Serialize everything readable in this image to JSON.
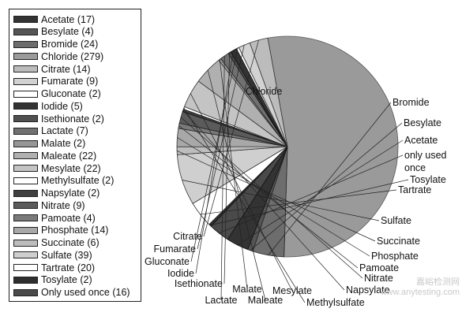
{
  "chart_data": {
    "type": "pie",
    "title": "",
    "slices": [
      {
        "label": "Chloride",
        "legend": "Chloride (279)",
        "value": 279,
        "color": "#9a9a9a",
        "edge": "#555555"
      },
      {
        "label": "Bromide",
        "legend": "Bromide (24)",
        "value": 24,
        "color": "#6d6d6d",
        "edge": "#222222"
      },
      {
        "label": "Besylate",
        "legend": "Besylate (4)",
        "value": 4,
        "color": "#555555",
        "edge": "#222222"
      },
      {
        "label": "Acetate",
        "legend": "Acetate (17)",
        "value": 17,
        "color": "#333333",
        "edge": "#111111"
      },
      {
        "label": "only used once",
        "legend": "Only used once (16)",
        "value": 16,
        "color": "#4a4a4a",
        "edge": "#111111"
      },
      {
        "label": "Tosylate",
        "legend": "Tosylate (2)",
        "value": 2,
        "color": "#2e2e2e",
        "edge": "#111111"
      },
      {
        "label": "Tartrate",
        "legend": "Tartrate (20)",
        "value": 20,
        "color": "#ffffff",
        "edge": "#222222"
      },
      {
        "label": "Sulfate",
        "legend": "Sulfate (39)",
        "value": 39,
        "color": "#cfcfcf",
        "edge": "#333333"
      },
      {
        "label": "Succinate",
        "legend": "Succinate (6)",
        "value": 6,
        "color": "#bdbdbd",
        "edge": "#333333"
      },
      {
        "label": "Phosphate",
        "legend": "Phosphate (14)",
        "value": 14,
        "color": "#a8a8a8",
        "edge": "#333333"
      },
      {
        "label": "Pamoate",
        "legend": "Pamoate (4)",
        "value": 4,
        "color": "#7a7a7a",
        "edge": "#222222"
      },
      {
        "label": "Nitrate",
        "legend": "Nitrate (9)",
        "value": 9,
        "color": "#5b5b5b",
        "edge": "#222222"
      },
      {
        "label": "Napsylate",
        "legend": "Napsylate (2)",
        "value": 2,
        "color": "#404040",
        "edge": "#111111"
      },
      {
        "label": "Methylsulfate",
        "legend": "Methylsulfate (2)",
        "value": 2,
        "color": "#ffffff",
        "edge": "#222222"
      },
      {
        "label": "Mesylate",
        "legend": "Mesylate (22)",
        "value": 22,
        "color": "#c4c4c4",
        "edge": "#333333"
      },
      {
        "label": "Maleate",
        "legend": "Maleate (22)",
        "value": 22,
        "color": "#b0b0b0",
        "edge": "#333333"
      },
      {
        "label": "Malate",
        "legend": "Malate (2)",
        "value": 2,
        "color": "#969696",
        "edge": "#333333"
      },
      {
        "label": "Lactate",
        "legend": "Lactate (7)",
        "value": 7,
        "color": "#707070",
        "edge": "#222222"
      },
      {
        "label": "Isethionate",
        "legend": "Isethionate (2)",
        "value": 2,
        "color": "#505050",
        "edge": "#111111"
      },
      {
        "label": "Iodide",
        "legend": "Iodide (5)",
        "value": 5,
        "color": "#333333",
        "edge": "#111111"
      },
      {
        "label": "Gluconate",
        "legend": "Gluconate (2)",
        "value": 2,
        "color": "#ffffff",
        "edge": "#222222"
      },
      {
        "label": "Fumarate",
        "legend": "Fumarate (9)",
        "value": 9,
        "color": "#d2d2d2",
        "edge": "#333333"
      },
      {
        "label": "Citrate",
        "legend": "Citrate (14)",
        "value": 14,
        "color": "#bcbcbc",
        "edge": "#333333"
      }
    ],
    "legend_order": [
      "Acetate",
      "Besylate",
      "Bromide",
      "Chloride",
      "Citrate",
      "Fumarate",
      "Gluconate",
      "Iodide",
      "Isethionate",
      "Lactate",
      "Malate",
      "Maleate",
      "Mesylate",
      "Methylsulfate",
      "Napsylate",
      "Nitrate",
      "Pamoate",
      "Phosphate",
      "Succinate",
      "Sulfate",
      "Tartrate",
      "Tosylate",
      "only used once"
    ],
    "legend_placement": "left"
  },
  "watermark": {
    "line1": "嘉峪检测网",
    "line2": "www.anytesting.com"
  }
}
